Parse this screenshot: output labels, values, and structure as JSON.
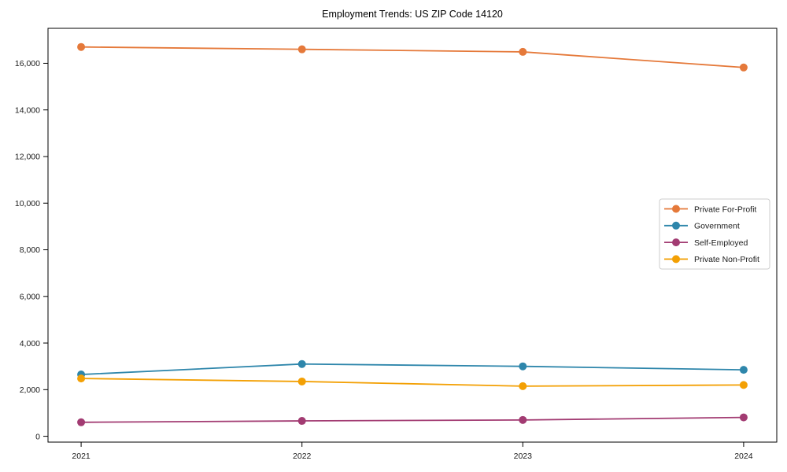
{
  "figure": {
    "title": "Employment Trends: US ZIP Code 14120"
  },
  "chart_data": {
    "type": "line",
    "title": "Employment Trends: US ZIP Code 14120",
    "xlabel": "",
    "ylabel": "",
    "x": [
      2021,
      2022,
      2023,
      2024
    ],
    "x_tick_labels": [
      "2021",
      "2022",
      "2023",
      "2024"
    ],
    "series": [
      {
        "name": "Private For-Profit",
        "color": "#E5793A",
        "values": [
          16700,
          16600,
          16490,
          15820
        ]
      },
      {
        "name": "Government",
        "color": "#2E86AB",
        "values": [
          2650,
          3100,
          3000,
          2850
        ]
      },
      {
        "name": "Self-Employed",
        "color": "#A23B72",
        "values": [
          600,
          660,
          700,
          810
        ]
      },
      {
        "name": "Private Non-Profit",
        "color": "#F3A004",
        "values": [
          2480,
          2350,
          2150,
          2200
        ]
      }
    ],
    "xlim": [
      2020.85,
      2024.15
    ],
    "ylim": [
      -250,
      17500
    ],
    "yticks": [
      0,
      2000,
      4000,
      6000,
      8000,
      10000,
      12000,
      14000,
      16000
    ],
    "ytick_labels": [
      "0",
      "2,000",
      "4,000",
      "6,000",
      "8,000",
      "10,000",
      "12,000",
      "14,000",
      "16,000"
    ],
    "grid": false,
    "legend_position": "center-right",
    "colors": {
      "spine": "#000000",
      "tick_label": "#1a1a1a",
      "legend_border": "#cccccc",
      "background": "#ffffff"
    }
  }
}
